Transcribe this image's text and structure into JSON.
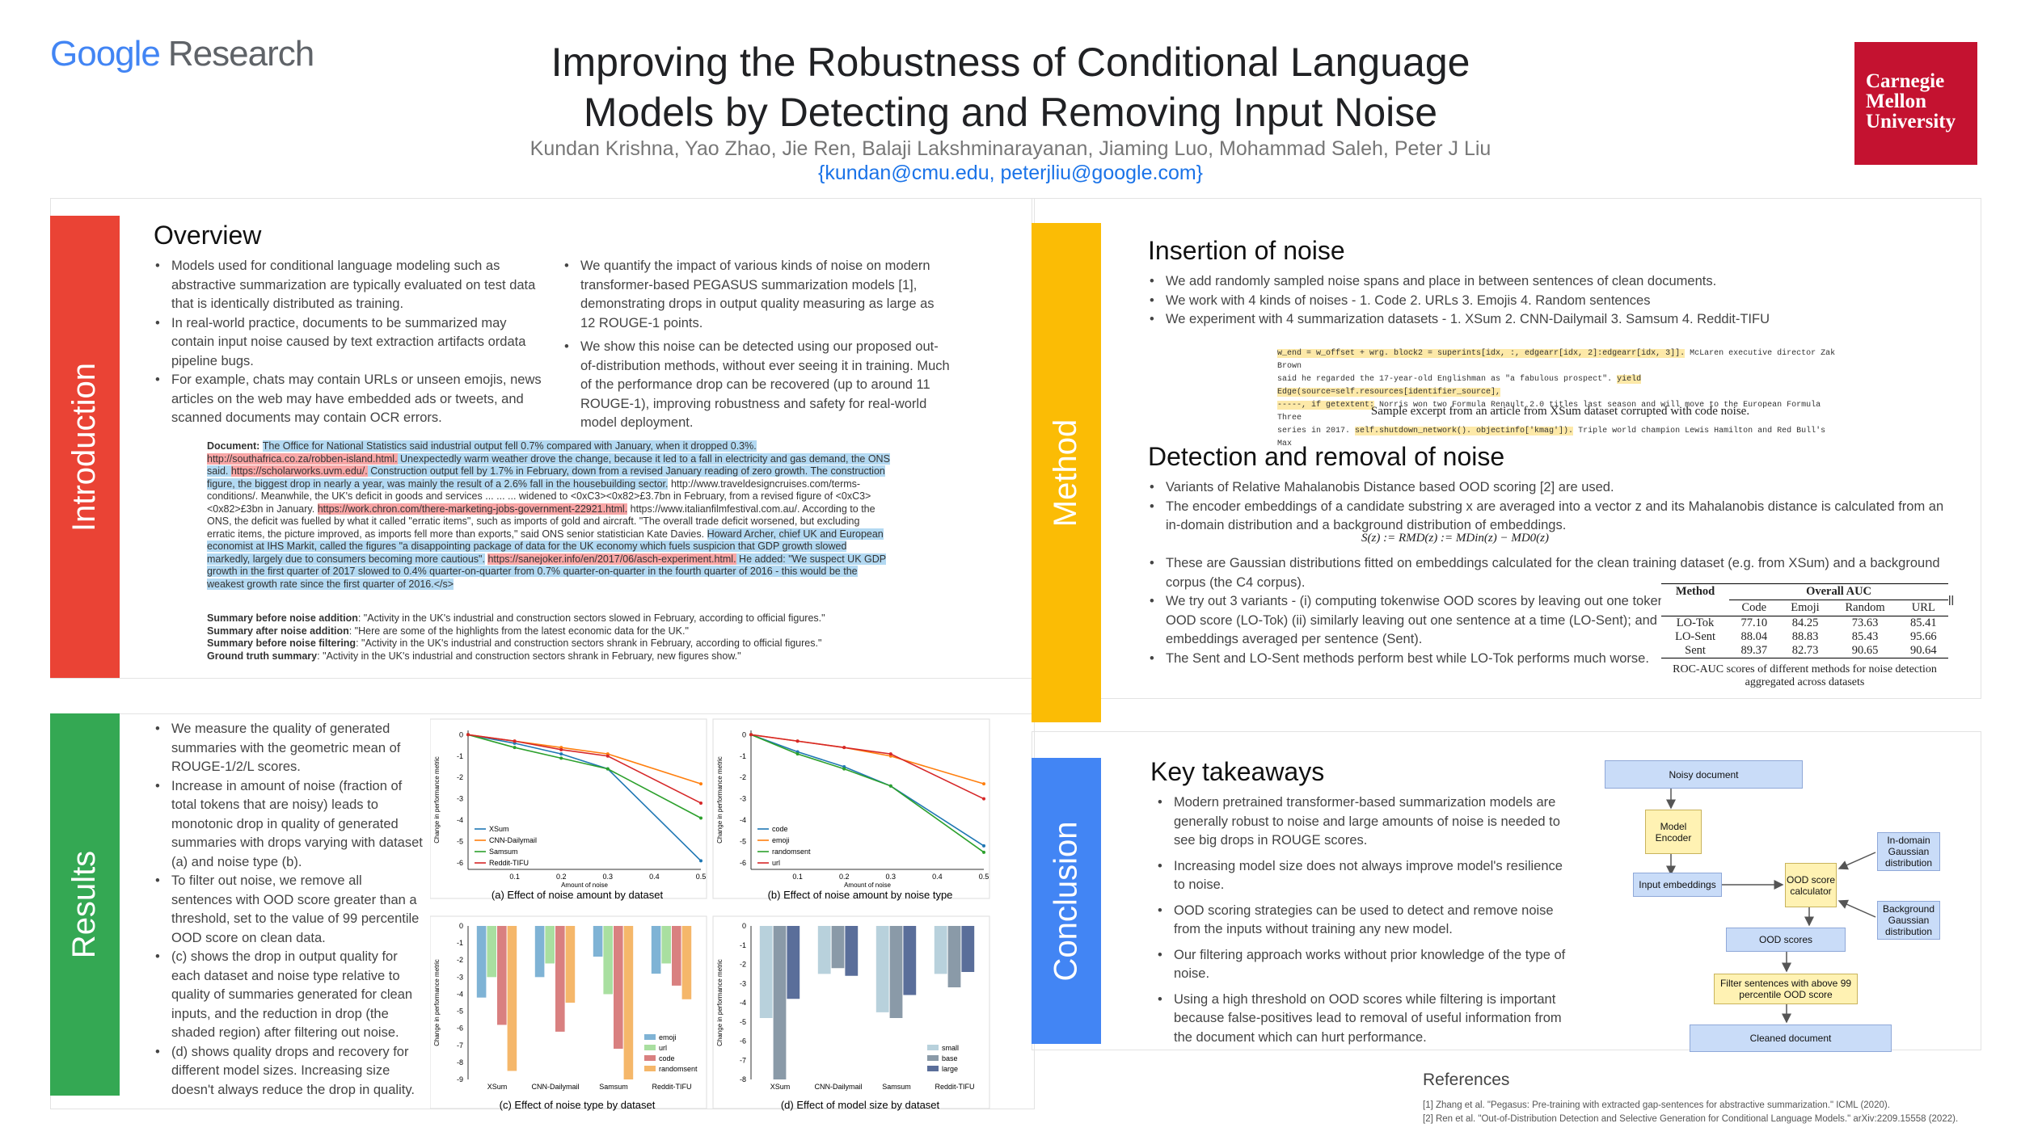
{
  "header": {
    "logo_google": "Google",
    "logo_research": "Research",
    "title_line1": "Improving the Robustness of Conditional Language",
    "title_line2": "Models by Detecting and Removing Input Noise",
    "authors": "Kundan Krishna, Yao Zhao, Jie Ren, Balaji Lakshminarayanan, Jiaming Luo, Mohammad Saleh, Peter J Liu",
    "emails": "{kundan@cmu.edu, peterjliu@google.com}",
    "cmu_logo": "Carnegie Mellon University"
  },
  "colors": {
    "intro": "#ea4335",
    "results": "#34a853",
    "method": "#fbbc05",
    "conclusion": "#4285f4"
  },
  "intro": {
    "side": "Introduction",
    "heading": "Overview",
    "bullets_left": [
      "Models used for conditional language modeling such as abstractive summarization are typically evaluated on test data that is identically distributed  as  training.",
      "In  real-world  practice, documents to be summarized may contain input noise caused by text extraction artifacts ordata pipeline bugs.",
      "For example, chats may contain URLs or unseen emojis, news articles on the web may have embedded ads or tweets, and scanned documents may contain OCR errors."
    ],
    "bullets_right": [
      "We quantify the impact of various kinds of noise on modern transformer-based PEGASUS summarization models [1], demonstrating drops in output quality measuring as large as 12 ROUGE-1 points.",
      "We show this noise can be detected using our proposed out-of-distribution methods, without ever seeing it in training. Much of the performance drop can be recovered (up to around 11 ROUGE-1), improving robustness and safety for real-world model deployment."
    ],
    "doc_label": "Document:",
    "doc_parts": [
      {
        "t": "The Office for National Statistics said industrial output fell 0.7% compared with January, when it dropped 0.3%.",
        "c": "hb"
      },
      {
        "t": " ",
        "c": ""
      },
      {
        "t": "http://southafrica.co.za/robben-island.html.",
        "c": "hr"
      },
      {
        "t": " Unexpectedly warm weather drove the change, because it led to a fall in electricity and gas demand, the ONS said. ",
        "c": "hb"
      },
      {
        "t": "https://scholarworks.uvm.edu/.",
        "c": "hr"
      },
      {
        "t": " Construction output fell by 1.7% in February, down from a revised January reading of zero growth. The construction figure, the biggest drop in nearly a year, was mainly the result of a 2.6% fall in the housebuilding sector.",
        "c": "hb"
      },
      {
        "t": " http://www.traveldesigncruises.com/terms-conditions/. Meanwhile, the UK's deficit in goods and services ... ... ... widened to <0xC3><0x82>£3.7bn in February, from a revised figure of <0xC3><0x82>£3bn in January. ",
        "c": ""
      },
      {
        "t": "https://work.chron.com/there-marketing-jobs-government-22921.html.",
        "c": "hr"
      },
      {
        "t": " https://www.italianfilmfestival.com.au/. According to the ONS, the deficit was fuelled by what it called \"erratic items\", such as imports of gold and aircraft. \"The overall trade deficit worsened, but excluding erratic items, the picture improved, as imports fell more than exports,\" said ONS senior statistician Kate Davies. ",
        "c": ""
      },
      {
        "t": "Howard Archer, chief UK and European economist at IHS Markit, called the figures \"a disappointing package of data for the UK economy which fuels suspicion that GDP growth slowed markedly, largely due to consumers becoming more cautious\".",
        "c": "hb"
      },
      {
        "t": " ",
        "c": ""
      },
      {
        "t": "https://sanejoker.info/en/2017/06/asch-experiment.html.",
        "c": "hr"
      },
      {
        "t": " He added: \"We suspect UK GDP growth in the first quarter of 2017 slowed to 0.4% quarter-on-quarter from 0.7% quarter-on-quarter in the fourth quarter of 2016 - this would be the weakest growth rate since the first quarter of 2016.</s>",
        "c": "hb"
      }
    ],
    "summaries": [
      {
        "label": "Summary before noise addition",
        "text": ": \"Activity in the UK's industrial and construction sectors slowed in February, according to official figures.\""
      },
      {
        "label": "Summary after noise addition",
        "text": ": \"Here are some of the highlights from the latest economic data for the UK.\""
      },
      {
        "label": "Summary before noise filtering",
        "text": ": \"Activity in the UK's industrial and construction sectors shrank in February, according to official figures.\""
      },
      {
        "label": "Ground truth summary",
        "text": ": \"Activity in the UK's industrial and construction sectors shrank in February, new figures show.\""
      }
    ]
  },
  "results": {
    "side": "Results",
    "bullets": [
      "We measure the quality of generated summaries with the geometric mean of ROUGE-1/2/L scores.",
      "Increase in amount of noise (fraction of total tokens that are noisy) leads to monotonic drop in quality of generated summaries with drops varying with dataset (a) and noise type (b).",
      "To filter out noise, we remove all sentences with OOD score greater than a threshold, set to the value of 99 percentile OOD score on clean data.",
      "(c) shows the drop in output quality for each dataset and noise type relative to quality of summaries generated for clean inputs, and the reduction in drop (the shaded region) after filtering out noise.",
      "(d) shows quality drops and recovery for different model sizes. Increasing size doesn't always reduce the drop in quality."
    ]
  },
  "method": {
    "side": "Method",
    "heading1": "Insertion of noise",
    "bullets1": [
      "We add randomly sampled noise spans and place in between sentences of clean documents.",
      "We work with 4 kinds of noises -     1. Code          2. URLs          3. Emojis          4. Random sentences",
      "We experiment with 4 summarization datasets -    1. XSum          2. CNN-Dailymail          3. Samsum     4. Reddit-TIFU"
    ],
    "code_lines": [
      [
        {
          "t": "w_end = w_offset + wrg. block2 = superints[idx, :, edgearr[idx, 2]:edgearr[idx, 3]].",
          "h": true
        },
        {
          "t": " McLaren executive director Zak Brown",
          "h": false
        }
      ],
      [
        {
          "t": "said he regarded the 17-year-old Englishman as \"a fabulous prospect\". ",
          "h": false
        },
        {
          "t": "yield Edge(source=self.resources[identifier_source],",
          "h": true
        }
      ],
      [
        {
          "t": "-----, if getextent:",
          "h": true
        },
        {
          "t": " Norris won two Formula Renault 2.0 titles last season and will move to the European Formula Three",
          "h": false
        }
      ],
      [
        {
          "t": "series in 2017. ",
          "h": false
        },
        {
          "t": "self.shutdown_network(). objectinfo['kmag']).",
          "h": true
        },
        {
          "t": " Triple world champion Lewis Hamilton and Red Bull's Max",
          "h": false
        }
      ]
    ],
    "code_caption": "Sample excerpt from an article from XSum dataset corrupted with code noise.",
    "heading2": "Detection and removal of noise",
    "bullets2a": [
      "Variants of Relative Mahalanobis Distance based OOD scoring [2] are used.",
      "The encoder embeddings of a candidate substring x are averaged into a vector z and its Mahalanobis distance is calculated from an in-domain distribution and a background distribution of embeddings."
    ],
    "formula": "S(z) := RMD(z) := MDin(z) − MD0(z)",
    "bullets2b": [
      "These are Gaussian distributions fitted on embeddings calculated for the clean training dataset (e.g. from XSum) and a background corpus (the C4 corpus).",
      "We try out 3 variants -  (i) computing tokenwise OOD scores by leaving out one token at a time and calculating the difference in overall OOD score (LO-Tok) (ii) similarly leaving out one sentence at a time (LO-Sent); and (iii) computing the Mahalanobis Distance for embeddings averaged per sentence (Sent).",
      "The Sent and LO-Sent methods perform best while LO-Tok performs much worse."
    ],
    "table": {
      "h_method": "Method",
      "h_group": "Overall AUC",
      "cols": [
        "Code",
        "Emoji",
        "Random",
        "URL"
      ],
      "rows": [
        [
          "LO-Tok",
          "77.10",
          "84.25",
          "73.63",
          "85.41"
        ],
        [
          "LO-Sent",
          "88.04",
          "88.83",
          "85.43",
          "95.66"
        ],
        [
          "Sent",
          "89.37",
          "82.73",
          "90.65",
          "90.64"
        ]
      ]
    },
    "table_caption": "ROC-AUC scores of different methods for noise detection aggregated across datasets"
  },
  "conclusion": {
    "side": "Conclusion",
    "heading": "Key takeaways",
    "bullets": [
      "Modern pretrained transformer-based summarization models are generally robust to noise and large amounts of noise is needed to see big drops in ROUGE scores.",
      "Increasing model size does not always improve model's resilience to noise.",
      "OOD scoring strategies can be used to detect and remove noise from the inputs without training any new model.",
      "Our filtering approach works without prior knowledge of the type of noise.",
      "Using a high threshold on OOD scores while filtering is important because false-positives lead to removal of useful information from the document which can hurt performance."
    ],
    "flow": {
      "noisy": "Noisy document",
      "encoder": "Model Encoder",
      "inputemb": "Input embeddings",
      "ood_calc": "OOD score calculator",
      "indomain": "In-domain Gaussian distribution",
      "background": "Background Gaussian distribution",
      "oodscores": "OOD scores",
      "filter": "Filter sentences with above 99 percentile OOD score",
      "cleaned": "Cleaned document"
    }
  },
  "references": {
    "heading": "References",
    "items": [
      "[1] Zhang et al. \"Pegasus: Pre-training with extracted gap-sentences for abstractive summarization.\" ICML (2020).",
      "[2] Ren et al. \"Out-of-Distribution Detection and Selective Generation for Conditional Language Models.\" arXiv:2209.15558 (2022)."
    ]
  },
  "chart_data": [
    {
      "type": "line",
      "title": "",
      "caption": "(a) Effect of noise amount by dataset",
      "xlabel": "Amount of noise",
      "ylabel": "Change in performance metric",
      "x": [
        0.0,
        0.1,
        0.2,
        0.3,
        0.5
      ],
      "ylim": [
        -6.3,
        0.2
      ],
      "xticks": [
        "0.1",
        "0.2",
        "0.3",
        "0.4",
        "0.5"
      ],
      "yticks": [
        "0",
        "-1",
        "-2",
        "-3",
        "-4",
        "-5",
        "-6"
      ],
      "series": [
        {
          "name": "XSum",
          "color": "#1f77b4",
          "values": [
            0,
            -0.4,
            -0.9,
            -1.6,
            -5.9
          ]
        },
        {
          "name": "CNN-Dailymail",
          "color": "#ff7f0e",
          "values": [
            0,
            -0.3,
            -0.6,
            -0.9,
            -2.3
          ]
        },
        {
          "name": "Samsum",
          "color": "#2ca02c",
          "values": [
            0,
            -0.6,
            -1.1,
            -1.6,
            -3.9
          ]
        },
        {
          "name": "Reddit-TIFU",
          "color": "#d62728",
          "values": [
            0,
            -0.3,
            -0.7,
            -1.0,
            -3.2
          ]
        }
      ]
    },
    {
      "type": "line",
      "title": "",
      "caption": "(b) Effect of noise amount by noise type",
      "xlabel": "Amount of noise",
      "ylabel": "Change in performance metric",
      "x": [
        0.0,
        0.1,
        0.2,
        0.3,
        0.5
      ],
      "ylim": [
        -6.3,
        0.2
      ],
      "xticks": [
        "0.1",
        "0.2",
        "0.3",
        "0.4",
        "0.5"
      ],
      "yticks": [
        "0",
        "-1",
        "-2",
        "-3",
        "-4",
        "-5",
        "-6"
      ],
      "series": [
        {
          "name": "code",
          "color": "#1f77b4",
          "values": [
            0,
            -0.8,
            -1.5,
            -2.4,
            -5.2
          ]
        },
        {
          "name": "emoji",
          "color": "#ff7f0e",
          "values": [
            0,
            -0.3,
            -0.6,
            -1.0,
            -2.3
          ]
        },
        {
          "name": "randomsent",
          "color": "#2ca02c",
          "values": [
            0,
            -0.9,
            -1.6,
            -2.4,
            -5.5
          ]
        },
        {
          "name": "url",
          "color": "#d62728",
          "values": [
            0,
            -0.3,
            -0.6,
            -0.9,
            -3.0
          ]
        }
      ]
    },
    {
      "type": "bar",
      "title": "",
      "caption": "(c) Effect of noise type by dataset",
      "ylabel": "Change in performance metric",
      "categories": [
        "XSum",
        "CNN-Dailymail",
        "Samsum",
        "Reddit-TIFU"
      ],
      "ylim": [
        -9,
        0
      ],
      "yticks": [
        "0",
        "-1",
        "-2",
        "-3",
        "-4",
        "-5",
        "-6",
        "-7",
        "-8",
        "-9"
      ],
      "series": [
        {
          "name": "emoji",
          "color": "#7fb3d5",
          "values": [
            -4.2,
            -3.0,
            -1.8,
            -2.8
          ]
        },
        {
          "name": "url",
          "color": "#a9dfa0",
          "values": [
            -3.0,
            -2.2,
            -4.0,
            -2.2
          ]
        },
        {
          "name": "code",
          "color": "#d98080",
          "values": [
            -5.8,
            -6.2,
            -7.2,
            -3.5
          ]
        },
        {
          "name": "randomsent",
          "color": "#f5b76a",
          "values": [
            -8.5,
            -4.5,
            -9.0,
            -4.3
          ]
        }
      ]
    },
    {
      "type": "bar",
      "title": "",
      "caption": "(d) Effect of model size by dataset",
      "ylabel": "Change in performance metric",
      "categories": [
        "XSum",
        "CNN-Dailymail",
        "Samsum",
        "Reddit-TIFU"
      ],
      "ylim": [
        -8,
        0
      ],
      "yticks": [
        "0",
        "-1",
        "-2",
        "-3",
        "-4",
        "-5",
        "-6",
        "-7",
        "-8"
      ],
      "series": [
        {
          "name": "small",
          "color": "#b8d1dc",
          "values": [
            -4.8,
            -2.5,
            -4.5,
            -2.5
          ]
        },
        {
          "name": "base",
          "color": "#8a9aa8",
          "values": [
            -8.0,
            -2.2,
            -4.8,
            -3.2
          ]
        },
        {
          "name": "large",
          "color": "#5a6e9a",
          "values": [
            -3.8,
            -2.6,
            -3.6,
            -2.4
          ]
        }
      ]
    }
  ]
}
